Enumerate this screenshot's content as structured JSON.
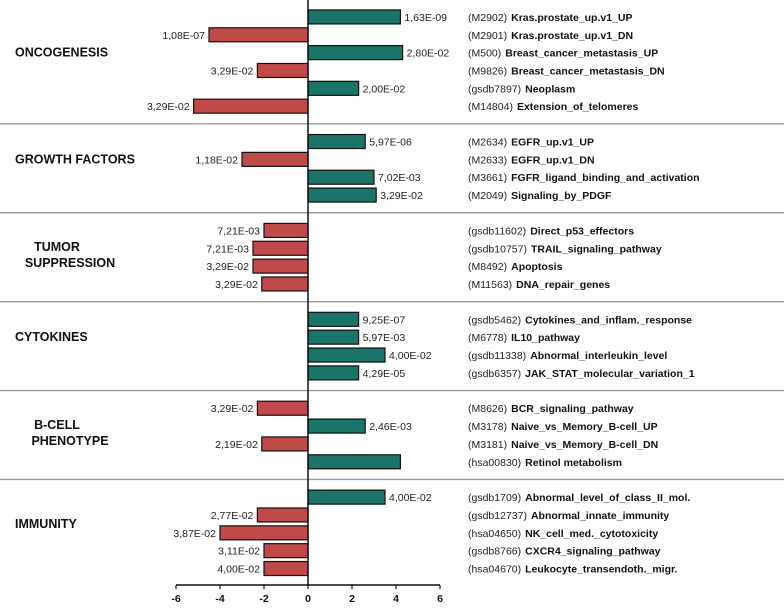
{
  "chart_data": {
    "type": "bar",
    "orientation": "horizontal",
    "xlim": [
      -6,
      6
    ],
    "xticks": [
      -6,
      -4,
      -2,
      0,
      2,
      4,
      6
    ],
    "colors": {
      "positive": "#1a7468",
      "negative": "#c04a4a"
    },
    "groups": [
      {
        "label_lines": [
          "ONCOGENESIS"
        ],
        "items": [
          {
            "id": "(M2902)",
            "name": "Kras.prostate_up.v1_UP",
            "value": 4.2,
            "pvalue": "1,63E-09"
          },
          {
            "id": "(M2901)",
            "name": "Kras.prostate_up.v1_DN",
            "value": -4.5,
            "pvalue": "1,08E-07"
          },
          {
            "id": "(M500)",
            "name": "Breast_cancer_metastasis_UP",
            "value": 4.3,
            "pvalue": "2,80E-02"
          },
          {
            "id": "(M9826)",
            "name": "Breast_cancer_metastasis_DN",
            "value": -2.3,
            "pvalue": "3,29E-02"
          },
          {
            "id": "(gsdb7897)",
            "name": "Neoplasm",
            "value": 2.3,
            "pvalue": "2,00E-02"
          },
          {
            "id": "(M14804)",
            "name": "Extension_of_telomeres",
            "value": -5.2,
            "pvalue": "3,29E-02"
          }
        ]
      },
      {
        "label_lines": [
          "GROWTH FACTORS"
        ],
        "items": [
          {
            "id": "(M2634)",
            "name": "EGFR_up.v1_UP",
            "value": 2.6,
            "pvalue": "5,97E-06"
          },
          {
            "id": "(M2633)",
            "name": "EGFR_up.v1_DN",
            "value": -3.0,
            "pvalue": "1,18E-02"
          },
          {
            "id": "(M3661)",
            "name": "FGFR_ligand_binding_and_activation",
            "value": 3.0,
            "pvalue": "7,02E-03"
          },
          {
            "id": "(M2049)",
            "name": "Signaling_by_PDGF",
            "value": 3.1,
            "pvalue": "3,29E-02"
          }
        ]
      },
      {
        "label_lines": [
          "TUMOR",
          "SUPPRESSION"
        ],
        "items": [
          {
            "id": "(gsdb11602)",
            "name": "Direct_p53_effectors",
            "value": -2.0,
            "pvalue": "7,21E-03"
          },
          {
            "id": "(gsdb10757)",
            "name": "TRAIL_signaling_pathway",
            "value": -2.5,
            "pvalue": "7,21E-03"
          },
          {
            "id": "(M8492)",
            "name": "Apoptosis",
            "value": -2.5,
            "pvalue": "3,29E-02"
          },
          {
            "id": "(M11563)",
            "name": "DNA_repair_genes",
            "value": -2.1,
            "pvalue": "3,29E-02"
          }
        ]
      },
      {
        "label_lines": [
          "CYTOKINES"
        ],
        "items": [
          {
            "id": "(gsdb5462)",
            "name": "Cytokines_and_inflam._response",
            "value": 2.3,
            "pvalue": "9,25E-07"
          },
          {
            "id": "(M6778)",
            "name": "IL10_pathway",
            "value": 2.3,
            "pvalue": "5,97E-03"
          },
          {
            "id": "(gsdb11338)",
            "name": "Abnormal_interleukin_level",
            "value": 3.5,
            "pvalue": "4,00E-02"
          },
          {
            "id": "(gsdb6357)",
            "name": "JAK_STAT_molecular_variation_1",
            "value": 2.3,
            "pvalue": "4,29E-05"
          }
        ]
      },
      {
        "label_lines": [
          "B-CELL",
          "PHENOTYPE"
        ],
        "items": [
          {
            "id": "(M8626)",
            "name": "BCR_signaling_pathway",
            "value": -2.3,
            "pvalue": "3,29E-02"
          },
          {
            "id": "(M3178)",
            "name": "Naive_vs_Memory_B-cell_UP",
            "value": 2.6,
            "pvalue": "2,46E-03"
          },
          {
            "id": "(M3181)",
            "name": "Naive_vs_Memory_B-cell_DN",
            "value": -2.1,
            "pvalue": "2,19E-02"
          },
          {
            "id": "(hsa00830)",
            "name": "Retinol metabolism",
            "value": 4.2,
            "pvalue": ""
          }
        ]
      },
      {
        "label_lines": [
          "IMMUNITY"
        ],
        "items": [
          {
            "id": "(gsdb1709)",
            "name": "Abnormal_level_of_class_II_mol.",
            "value": 3.5,
            "pvalue": "4,00E-02"
          },
          {
            "id": "(gsdb12737)",
            "name": "Abnormal_innate_immunity",
            "value": -2.3,
            "pvalue": "2,77E-02"
          },
          {
            "id": "(hsa04650)",
            "name": "NK_cell_med._cytotoxicity",
            "value": -4.0,
            "pvalue": "3,87E-02"
          },
          {
            "id": "(gsdb8766)",
            "name": "CXCR4_signaling_pathway",
            "value": -2.0,
            "pvalue": "3,11E-02"
          },
          {
            "id": "(hsa04670)",
            "name": "Leukocyte_transendoth._migr.",
            "value": -2.0,
            "pvalue": "4,00E-02"
          }
        ]
      }
    ]
  }
}
